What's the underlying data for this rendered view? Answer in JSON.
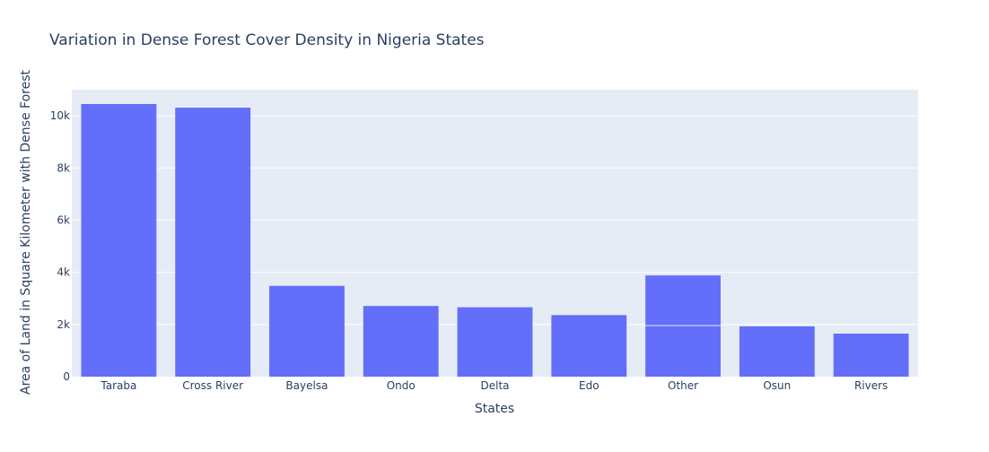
{
  "chart_data": {
    "type": "bar",
    "title": "Variation in Dense Forest Cover Density in Nigeria States",
    "xlabel": "States",
    "ylabel": "Area of Land in Square Kilometer with Dense Forest",
    "categories": [
      "Taraba",
      "Cross River",
      "Bayelsa",
      "Ondo",
      "Delta",
      "Edo",
      "Other",
      "Osun",
      "Rivers"
    ],
    "values": [
      10450,
      10310,
      3480,
      2710,
      2660,
      2360,
      3880,
      1930,
      1650
    ],
    "stack_split": {
      "category": "Other",
      "value": 1960
    },
    "ylim": [
      0,
      11000
    ],
    "yticks": [
      0,
      2000,
      4000,
      6000,
      8000,
      10000
    ],
    "ytick_labels": [
      "0",
      "2k",
      "4k",
      "6k",
      "8k",
      "10k"
    ],
    "grid": true,
    "colors": {
      "bar": "#636efa",
      "plot_bg": "#e5ecf6",
      "grid": "#ffffff",
      "text": "#2a3f5f"
    }
  }
}
